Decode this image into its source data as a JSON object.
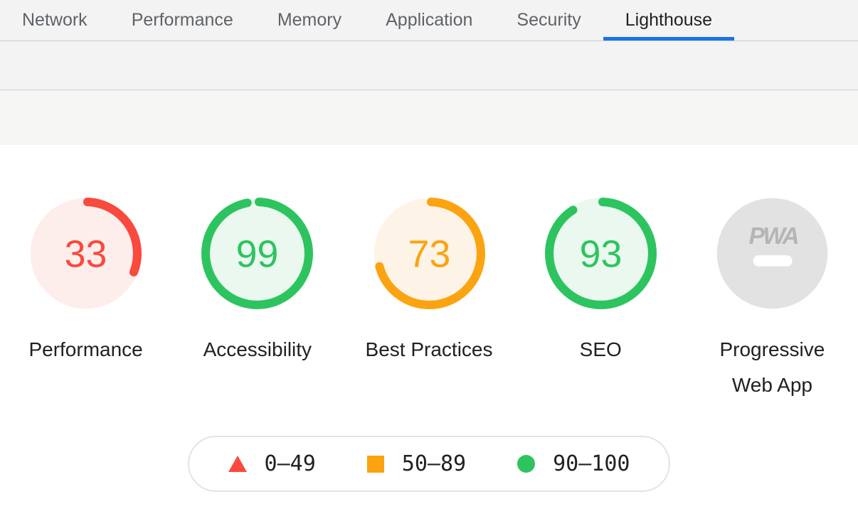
{
  "tabs": {
    "items": [
      {
        "label": "Network",
        "active": false
      },
      {
        "label": "Performance",
        "active": false
      },
      {
        "label": "Memory",
        "active": false
      },
      {
        "label": "Application",
        "active": false
      },
      {
        "label": "Security",
        "active": false
      },
      {
        "label": "Lighthouse",
        "active": true
      }
    ],
    "active_underline_color": "#1a73e8"
  },
  "scores": {
    "items": [
      {
        "label": "Performance",
        "score": 33,
        "status": "fail",
        "arc_color": "#fa493d",
        "fill_color": "#fdeeec"
      },
      {
        "label": "Accessibility",
        "score": 99,
        "status": "pass",
        "arc_color": "#2dc45f",
        "fill_color": "#eaf8ef"
      },
      {
        "label": "Best Practices",
        "score": 73,
        "status": "average",
        "arc_color": "#fca311",
        "fill_color": "#fdf4e7"
      },
      {
        "label": "SEO",
        "score": 93,
        "status": "pass",
        "arc_color": "#2dc45f",
        "fill_color": "#eaf8ef"
      },
      {
        "label": "Progressive Web App",
        "type": "pwa",
        "badge_text": "PWA",
        "disc_color": "#e2e2e2",
        "badge_text_color": "#b5b5b5",
        "dash_color": "#ffffff"
      }
    ]
  },
  "legend": {
    "items": [
      {
        "shape": "triangle",
        "color": "#fa493d",
        "range": "0–49",
        "meaning": "fail"
      },
      {
        "shape": "square",
        "color": "#fca311",
        "range": "50–89",
        "meaning": "average"
      },
      {
        "shape": "circle",
        "color": "#2dc45f",
        "range": "90–100",
        "meaning": "pass"
      }
    ]
  },
  "chart_data": {
    "type": "gauge-set",
    "title": "Lighthouse report scores",
    "categories": [
      "Performance",
      "Accessibility",
      "Best Practices",
      "SEO",
      "Progressive Web App"
    ],
    "values": [
      33,
      99,
      73,
      93,
      null
    ],
    "value_range": [
      0,
      100
    ],
    "bands": [
      {
        "range": "0–49",
        "color": "#fa493d"
      },
      {
        "range": "50–89",
        "color": "#fca311"
      },
      {
        "range": "90–100",
        "color": "#2dc45f"
      }
    ]
  }
}
